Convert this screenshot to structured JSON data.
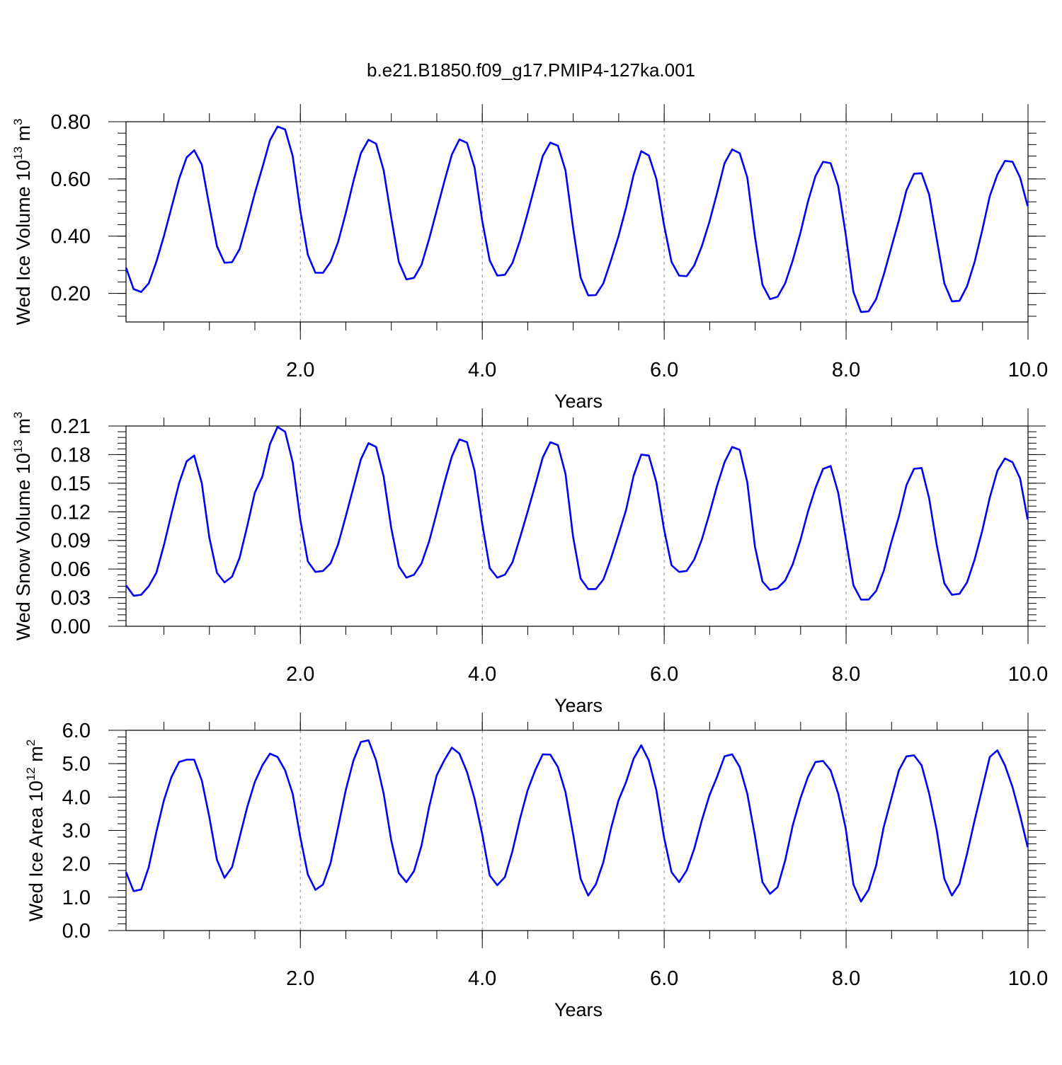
{
  "title": "b.e21.B1850.f09_g17.PMIP4-127ka.001",
  "chart_data": [
    {
      "type": "line",
      "ylabel": "Wed Ice Volume 10",
      "ylabel_exp": "13",
      "ylabel_unit": " m",
      "ylabel_unit_exp": "3",
      "xlabel": "Years",
      "xlim": [
        0.0833,
        10.0
      ],
      "ylim": [
        0.1,
        0.8
      ],
      "yticks": [
        0.2,
        0.4,
        0.6,
        0.8
      ],
      "ytick_labels": [
        "0.20",
        "0.40",
        "0.60",
        "0.80"
      ],
      "yminor_step": 0.04,
      "xticks": [
        2,
        4,
        6,
        8,
        10
      ],
      "xtick_labels": [
        "2.0",
        "4.0",
        "6.0",
        "8.0",
        "10.0"
      ],
      "xminor_step": 0.5,
      "color": "#0000ff",
      "x_start": 0.0833,
      "x_step": 0.0833,
      "values": [
        0.29,
        0.215,
        0.205,
        0.235,
        0.31,
        0.4,
        0.5,
        0.6,
        0.675,
        0.7,
        0.65,
        0.505,
        0.365,
        0.307,
        0.309,
        0.355,
        0.45,
        0.55,
        0.64,
        0.735,
        0.783,
        0.773,
        0.68,
        0.49,
        0.335,
        0.272,
        0.272,
        0.31,
        0.38,
        0.48,
        0.59,
        0.69,
        0.737,
        0.723,
        0.63,
        0.465,
        0.31,
        0.249,
        0.254,
        0.3,
        0.39,
        0.49,
        0.59,
        0.685,
        0.738,
        0.726,
        0.64,
        0.455,
        0.315,
        0.262,
        0.265,
        0.306,
        0.385,
        0.48,
        0.58,
        0.68,
        0.727,
        0.716,
        0.63,
        0.43,
        0.255,
        0.193,
        0.194,
        0.235,
        0.315,
        0.4,
        0.5,
        0.615,
        0.697,
        0.682,
        0.6,
        0.44,
        0.31,
        0.262,
        0.26,
        0.298,
        0.365,
        0.45,
        0.55,
        0.655,
        0.703,
        0.69,
        0.605,
        0.4,
        0.23,
        0.18,
        0.188,
        0.235,
        0.315,
        0.41,
        0.52,
        0.61,
        0.66,
        0.655,
        0.575,
        0.405,
        0.205,
        0.135,
        0.137,
        0.18,
        0.265,
        0.36,
        0.455,
        0.56,
        0.618,
        0.62,
        0.545,
        0.39,
        0.235,
        0.172,
        0.174,
        0.225,
        0.31,
        0.42,
        0.54,
        0.615,
        0.663,
        0.66,
        0.605,
        0.505
      ]
    },
    {
      "type": "line",
      "ylabel": "Wed Snow Volume 10",
      "ylabel_exp": "13",
      "ylabel_unit": " m",
      "ylabel_unit_exp": "3",
      "xlabel": "Years",
      "xlim": [
        0.0833,
        10.0
      ],
      "ylim": [
        0.0,
        0.21
      ],
      "yticks": [
        0.0,
        0.03,
        0.06,
        0.09,
        0.12,
        0.15,
        0.18,
        0.21
      ],
      "ytick_labels": [
        "0.00",
        "0.03",
        "0.06",
        "0.09",
        "0.12",
        "0.15",
        "0.18",
        "0.21"
      ],
      "yminor_step": 0.006,
      "xticks": [
        2,
        4,
        6,
        8,
        10
      ],
      "xtick_labels": [
        "2.0",
        "4.0",
        "6.0",
        "8.0",
        "10.0"
      ],
      "xminor_step": 0.5,
      "color": "#0000ff",
      "x_start": 0.0833,
      "x_step": 0.0833,
      "values": [
        0.043,
        0.032,
        0.033,
        0.042,
        0.056,
        0.085,
        0.118,
        0.15,
        0.173,
        0.179,
        0.15,
        0.093,
        0.056,
        0.046,
        0.052,
        0.072,
        0.105,
        0.14,
        0.157,
        0.191,
        0.209,
        0.204,
        0.172,
        0.112,
        0.068,
        0.057,
        0.058,
        0.066,
        0.086,
        0.115,
        0.145,
        0.175,
        0.192,
        0.188,
        0.157,
        0.103,
        0.063,
        0.051,
        0.054,
        0.066,
        0.089,
        0.119,
        0.15,
        0.178,
        0.196,
        0.193,
        0.163,
        0.108,
        0.061,
        0.051,
        0.054,
        0.067,
        0.093,
        0.12,
        0.148,
        0.177,
        0.193,
        0.19,
        0.16,
        0.094,
        0.05,
        0.039,
        0.039,
        0.049,
        0.071,
        0.096,
        0.122,
        0.158,
        0.18,
        0.179,
        0.151,
        0.102,
        0.064,
        0.057,
        0.058,
        0.07,
        0.091,
        0.118,
        0.147,
        0.172,
        0.188,
        0.185,
        0.151,
        0.084,
        0.047,
        0.038,
        0.04,
        0.048,
        0.065,
        0.09,
        0.12,
        0.145,
        0.165,
        0.168,
        0.14,
        0.092,
        0.043,
        0.028,
        0.028,
        0.037,
        0.058,
        0.088,
        0.115,
        0.148,
        0.165,
        0.166,
        0.134,
        0.085,
        0.045,
        0.033,
        0.034,
        0.046,
        0.07,
        0.1,
        0.135,
        0.163,
        0.176,
        0.172,
        0.155,
        0.112
      ]
    },
    {
      "type": "line",
      "ylabel": "Wed Ice Area 10",
      "ylabel_exp": "12",
      "ylabel_unit": " m",
      "ylabel_unit_exp": "2",
      "xlabel": "Years",
      "xlim": [
        0.0833,
        10.0
      ],
      "ylim": [
        0.0,
        6.0
      ],
      "yticks": [
        0,
        1,
        2,
        3,
        4,
        5,
        6
      ],
      "ytick_labels": [
        "0.0",
        "1.0",
        "2.0",
        "3.0",
        "4.0",
        "5.0",
        "6.0"
      ],
      "yminor_step": 0.2,
      "xticks": [
        2,
        4,
        6,
        8,
        10
      ],
      "xtick_labels": [
        "2.0",
        "4.0",
        "6.0",
        "8.0",
        "10.0"
      ],
      "xminor_step": 0.5,
      "color": "#0000ff",
      "x_start": 0.0833,
      "x_step": 0.0833,
      "values": [
        1.75,
        1.18,
        1.23,
        1.9,
        2.95,
        3.9,
        4.6,
        5.05,
        5.12,
        5.12,
        4.5,
        3.4,
        2.12,
        1.58,
        1.9,
        2.8,
        3.7,
        4.45,
        4.95,
        5.3,
        5.2,
        4.8,
        4.1,
        2.8,
        1.68,
        1.22,
        1.38,
        2.02,
        3.1,
        4.2,
        5.08,
        5.65,
        5.7,
        5.1,
        4.1,
        2.7,
        1.72,
        1.45,
        1.78,
        2.55,
        3.7,
        4.65,
        5.1,
        5.48,
        5.3,
        4.75,
        3.95,
        2.9,
        1.65,
        1.36,
        1.6,
        2.38,
        3.35,
        4.2,
        4.8,
        5.28,
        5.27,
        4.9,
        4.15,
        2.9,
        1.55,
        1.05,
        1.38,
        2.05,
        3.05,
        3.9,
        4.45,
        5.15,
        5.55,
        5.1,
        4.2,
        2.8,
        1.75,
        1.45,
        1.8,
        2.45,
        3.3,
        4.05,
        4.6,
        5.22,
        5.28,
        4.9,
        4.1,
        2.85,
        1.45,
        1.1,
        1.3,
        2.1,
        3.15,
        3.95,
        4.6,
        5.05,
        5.08,
        4.8,
        4.1,
        3.05,
        1.38,
        0.87,
        1.22,
        1.95,
        3.1,
        3.95,
        4.8,
        5.22,
        5.25,
        4.95,
        4.1,
        3.0,
        1.55,
        1.05,
        1.4,
        2.3,
        3.3,
        4.25,
        5.2,
        5.4,
        4.95,
        4.3,
        3.45,
        2.5
      ]
    }
  ]
}
